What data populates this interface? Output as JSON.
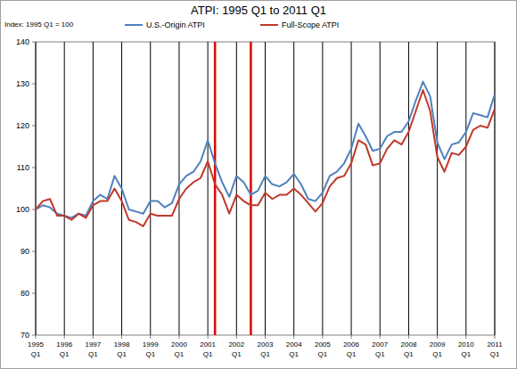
{
  "chart_data": {
    "type": "line",
    "title": "ATPI: 1995 Q1 to 2011 Q1",
    "subtitle": "Index: 1995 Q1 = 100",
    "categories": [
      "1995 Q1",
      null,
      null,
      null,
      "1996 Q1",
      null,
      null,
      null,
      "1997 Q1",
      null,
      null,
      null,
      "1998 Q1",
      null,
      null,
      null,
      "1999 Q1",
      null,
      null,
      null,
      "2000 Q1",
      null,
      null,
      null,
      "2001 Q1",
      null,
      null,
      null,
      "2002 Q1",
      null,
      null,
      null,
      "2003 Q1",
      null,
      null,
      null,
      "2004 Q1",
      null,
      null,
      null,
      "2005 Q1",
      null,
      null,
      null,
      "2006 Q1",
      null,
      null,
      null,
      "2007 Q1",
      null,
      null,
      null,
      "2008 Q1",
      null,
      null,
      null,
      "2009 Q1",
      null,
      null,
      null,
      "2010 Q1",
      null,
      null,
      null,
      "2011 Q1"
    ],
    "series": [
      {
        "name": "U.S.-Origin ATPI",
        "color": "#4f81bd",
        "line_style": "solid",
        "values": [
          100,
          101,
          100.5,
          99,
          98.5,
          98,
          99,
          98.5,
          102,
          103.5,
          102.5,
          108,
          105,
          100,
          99.5,
          99,
          102,
          102,
          100.5,
          101.5,
          106,
          108,
          109,
          111.5,
          116.5,
          111,
          106.5,
          103,
          108,
          106.5,
          103.5,
          104.5,
          108,
          106,
          105.5,
          106.5,
          108.5,
          106,
          102.5,
          102,
          104,
          108,
          109,
          111,
          114.5,
          120.5,
          117.5,
          114,
          114.5,
          117.5,
          118.5,
          118.5,
          121,
          126,
          130.5,
          127,
          116,
          112,
          115.5,
          116,
          118.5,
          123,
          122.5,
          122,
          127.5
        ]
      },
      {
        "name": "Full-Scope ATPI",
        "color": "#c0392b",
        "line_style": "solid",
        "values": [
          100,
          102,
          102.5,
          98.5,
          98.5,
          97.5,
          99,
          98,
          101,
          102,
          102,
          105,
          102,
          97.5,
          97,
          96,
          99,
          98.5,
          98.5,
          98.5,
          102.5,
          105,
          106.5,
          107.5,
          111.5,
          106,
          103.5,
          99,
          103.5,
          102,
          101,
          101,
          104,
          102.5,
          103.5,
          103.5,
          105,
          103.5,
          101.5,
          99.5,
          101.5,
          105.5,
          107.5,
          108,
          111,
          116.5,
          115.5,
          110.5,
          111,
          114.5,
          116.5,
          115.5,
          118.5,
          123.5,
          128.5,
          123.5,
          112.5,
          109,
          113.5,
          113,
          115,
          119,
          120,
          119.5,
          124
        ]
      }
    ],
    "vlines": [
      25,
      30
    ],
    "ylim": [
      70,
      140
    ],
    "yticks": [
      70,
      80,
      90,
      100,
      110,
      120,
      130,
      140
    ],
    "grid": true,
    "legend": "top"
  }
}
